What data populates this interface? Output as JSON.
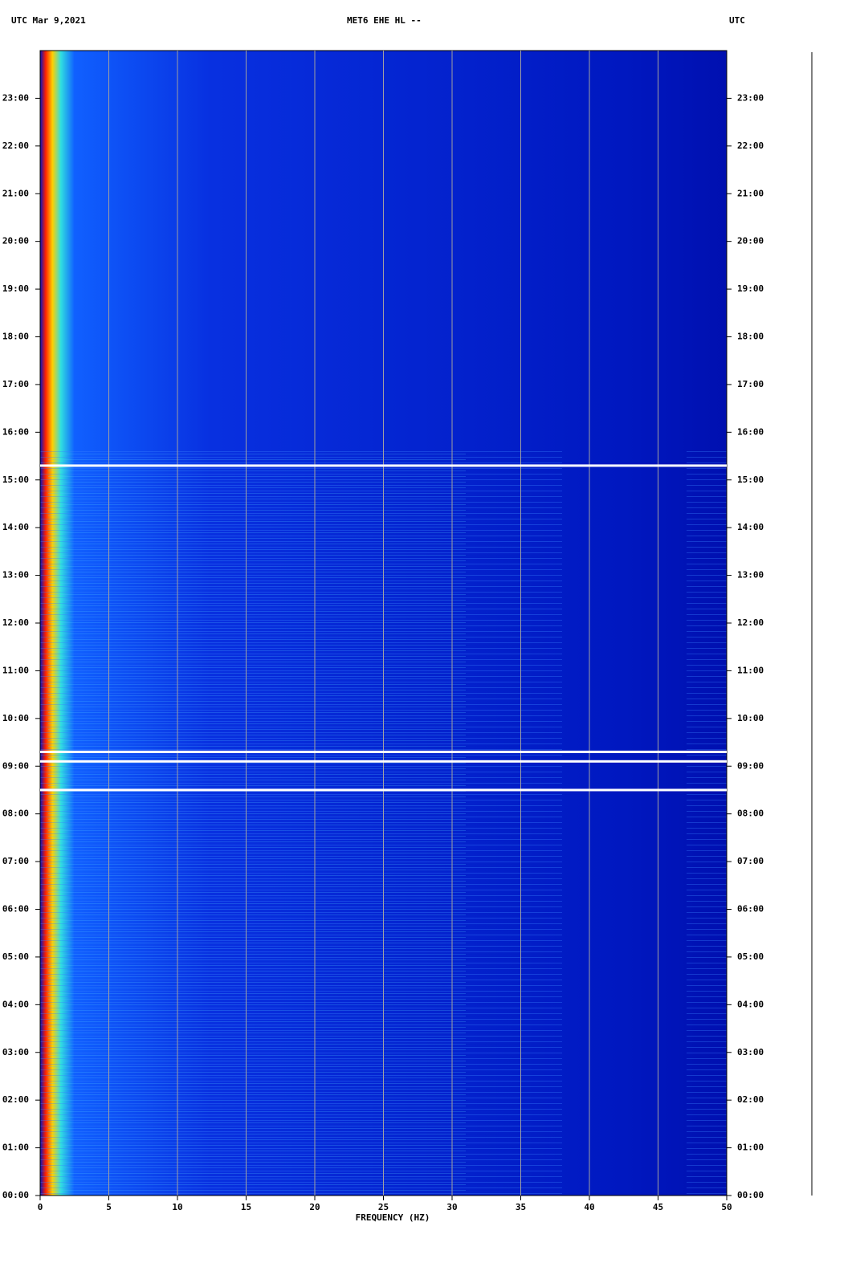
{
  "chart_data": {
    "type": "spectrogram",
    "title_left": "UTC  Mar 9,2021",
    "title": "MET6 EHE HL --",
    "title_right": "UTC",
    "x_label": "FREQUENCY (HZ)",
    "xlim": [
      0,
      50
    ],
    "xticks": [
      0,
      5,
      10,
      15,
      20,
      25,
      30,
      35,
      40,
      45,
      50
    ],
    "ylim": [
      0,
      24
    ],
    "yticks": [
      {
        "value": 0,
        "label": "00:00"
      },
      {
        "value": 1,
        "label": "01:00"
      },
      {
        "value": 2,
        "label": "02:00"
      },
      {
        "value": 3,
        "label": "03:00"
      },
      {
        "value": 4,
        "label": "04:00"
      },
      {
        "value": 5,
        "label": "05:00"
      },
      {
        "value": 6,
        "label": "06:00"
      },
      {
        "value": 7,
        "label": "07:00"
      },
      {
        "value": 8,
        "label": "08:00"
      },
      {
        "value": 9,
        "label": "09:00"
      },
      {
        "value": 10,
        "label": "10:00"
      },
      {
        "value": 11,
        "label": "11:00"
      },
      {
        "value": 12,
        "label": "12:00"
      },
      {
        "value": 13,
        "label": "13:00"
      },
      {
        "value": 14,
        "label": "14:00"
      },
      {
        "value": 15,
        "label": "15:00"
      },
      {
        "value": 16,
        "label": "16:00"
      },
      {
        "value": 17,
        "label": "17:00"
      },
      {
        "value": 18,
        "label": "18:00"
      },
      {
        "value": 19,
        "label": "19:00"
      },
      {
        "value": 20,
        "label": "20:00"
      },
      {
        "value": 21,
        "label": "21:00"
      },
      {
        "value": 22,
        "label": "22:00"
      },
      {
        "value": 23,
        "label": "23:00"
      }
    ],
    "gaps": [
      15.3,
      9.3,
      9.1,
      8.5
    ],
    "grid": true,
    "grid_color": "#a0a0a0",
    "gap_color": "#ffffff"
  }
}
